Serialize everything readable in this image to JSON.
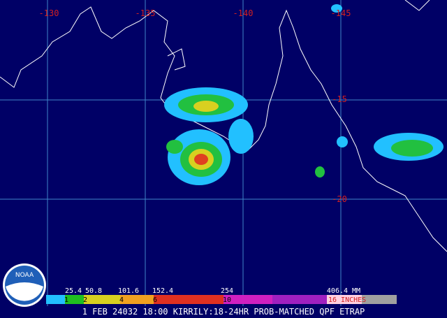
{
  "map": {
    "lon_labels": [
      "-130",
      "-135",
      "-140",
      "-145"
    ],
    "lat_labels": [
      "-15",
      "-20"
    ],
    "logo": "NOAA",
    "scale_mm": [
      "25.4",
      "50.8",
      "101.6",
      "152.4",
      "254",
      "406.4 MM"
    ],
    "scale_in": [
      "1",
      "2",
      "4",
      "6",
      "10",
      "16 INCHES"
    ],
    "caption": "1 FEB 24032 18:00 KIRRILY:18-24HR PROB-MATCHED QPF ETRAP"
  }
}
